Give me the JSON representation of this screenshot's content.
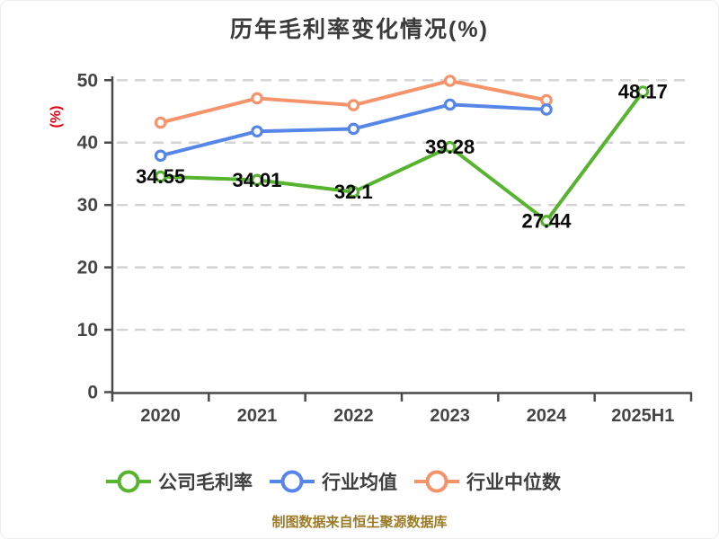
{
  "title": "历年毛利率变化情况(%)",
  "y_axis_unit": "(%)",
  "caption": "制图数据来自恒生聚源数据库",
  "colors": {
    "title_text": "#3b3b3b",
    "axis_text": "#454545",
    "axis_line": "#4a4a4a",
    "grid_line": "#d3d3d3",
    "unit_label": "#e60012",
    "caption_text": "#9c7b28",
    "data_label": "#0a0a0a",
    "company": "#57b42e",
    "industry_average": "#5586e8",
    "industry_median": "#f5936a"
  },
  "chart_data": {
    "type": "line",
    "title": "历年毛利率变化情况(%)",
    "ylabel": "(%)",
    "categories": [
      "2020",
      "2021",
      "2022",
      "2023",
      "2024",
      "2025H1"
    ],
    "ylim": [
      0,
      50
    ],
    "y_ticks": [
      0,
      10,
      20,
      30,
      40,
      50
    ],
    "grid": "horizontal dashed",
    "legend_position": "bottom",
    "series": [
      {
        "key": "company",
        "name": "公司毛利率",
        "values": [
          34.55,
          34.01,
          32.1,
          39.28,
          27.44,
          48.17
        ],
        "labels": [
          "34.55",
          "34.01",
          "32.1",
          "39.28",
          "27.44",
          "48.17"
        ],
        "show_labels": true
      },
      {
        "key": "industry_average",
        "name": "行业均值",
        "values": [
          37.9,
          41.8,
          42.2,
          46.1,
          45.3
        ],
        "labels": [],
        "show_labels": false
      },
      {
        "key": "industry_median",
        "name": "行业中位数",
        "values": [
          43.2,
          47.1,
          46.0,
          49.9,
          46.8
        ],
        "labels": [],
        "show_labels": false
      }
    ]
  }
}
